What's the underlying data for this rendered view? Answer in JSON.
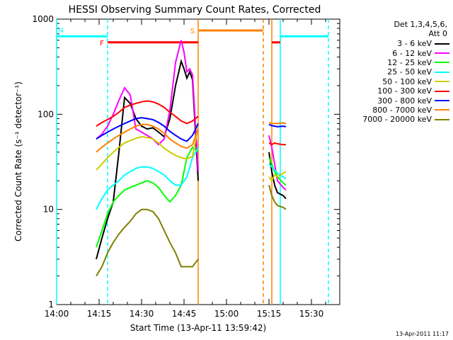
{
  "chart_data": {
    "type": "line",
    "title": "HESSI Observing Summary Count Rates, Corrected",
    "xlabel": "Start Time (13-Apr-11 13:59:42)",
    "ylabel": "Corrected Count Rate (s⁻¹ detector⁻¹)",
    "x_unit": "minutes after 14:00",
    "xlim": [
      0,
      100
    ],
    "ylim": [
      1,
      1000
    ],
    "y_scale": "log",
    "x_ticks": [
      "14:00",
      "14:15",
      "14:30",
      "14:45",
      "15:00",
      "15:15",
      "15:30"
    ],
    "x_tick_values": [
      0,
      15,
      30,
      45,
      60,
      75,
      90
    ],
    "y_ticks": [
      "1",
      "10",
      "100",
      "1000"
    ],
    "y_tick_values": [
      1,
      10,
      100,
      1000
    ],
    "legend_header": [
      "Det 1,3,4,5,6,",
      "Att 0"
    ],
    "legend_position": "right",
    "timestamp": "13-Apr-2011 11:17",
    "series": [
      {
        "name": "3 - 6 keV",
        "color": "#000000",
        "points": [
          [
            14,
            3
          ],
          [
            16,
            5
          ],
          [
            18,
            8
          ],
          [
            20,
            12
          ],
          [
            22,
            40
          ],
          [
            24,
            150
          ],
          [
            26,
            130
          ],
          [
            28,
            90
          ],
          [
            30,
            75
          ],
          [
            32,
            70
          ],
          [
            34,
            72
          ],
          [
            36,
            65
          ],
          [
            38,
            58
          ],
          [
            40,
            90
          ],
          [
            42,
            200
          ],
          [
            44,
            360
          ],
          [
            45,
            300
          ],
          [
            46,
            240
          ],
          [
            47,
            280
          ],
          [
            48,
            230
          ],
          [
            50,
            20
          ]
        ],
        "points2": [
          [
            75,
            40
          ],
          [
            76,
            25
          ],
          [
            77,
            18
          ],
          [
            78,
            15
          ],
          [
            80,
            14
          ],
          [
            81,
            13
          ]
        ]
      },
      {
        "name": "6 - 12 keV",
        "color": "#ff00ff",
        "points": [
          [
            14,
            55
          ],
          [
            16,
            62
          ],
          [
            18,
            75
          ],
          [
            20,
            100
          ],
          [
            22,
            140
          ],
          [
            24,
            190
          ],
          [
            26,
            160
          ],
          [
            28,
            70
          ],
          [
            30,
            65
          ],
          [
            32,
            60
          ],
          [
            34,
            55
          ],
          [
            36,
            48
          ],
          [
            38,
            55
          ],
          [
            40,
            110
          ],
          [
            42,
            350
          ],
          [
            44,
            600
          ],
          [
            45,
            450
          ],
          [
            46,
            280
          ],
          [
            47,
            300
          ],
          [
            48,
            260
          ],
          [
            50,
            25
          ]
        ],
        "points2": [
          [
            75,
            60
          ],
          [
            76,
            45
          ],
          [
            77,
            30
          ],
          [
            78,
            20
          ],
          [
            80,
            17
          ],
          [
            81,
            16
          ]
        ]
      },
      {
        "name": "12 - 25 keV",
        "color": "#00ff00",
        "points": [
          [
            14,
            4
          ],
          [
            16,
            6
          ],
          [
            18,
            9
          ],
          [
            20,
            12
          ],
          [
            22,
            14
          ],
          [
            24,
            16
          ],
          [
            26,
            17
          ],
          [
            28,
            18
          ],
          [
            30,
            19
          ],
          [
            32,
            20
          ],
          [
            34,
            19
          ],
          [
            36,
            17
          ],
          [
            38,
            14
          ],
          [
            40,
            12
          ],
          [
            42,
            14
          ],
          [
            44,
            18
          ],
          [
            46,
            35
          ],
          [
            48,
            45
          ],
          [
            50,
            40
          ]
        ],
        "points2": [
          [
            75,
            35
          ],
          [
            76,
            30
          ],
          [
            77,
            25
          ],
          [
            78,
            22
          ],
          [
            80,
            19
          ],
          [
            81,
            18
          ]
        ]
      },
      {
        "name": "25 - 50 keV",
        "color": "#00ffff",
        "points": [
          [
            14,
            10
          ],
          [
            16,
            13
          ],
          [
            18,
            16
          ],
          [
            20,
            18
          ],
          [
            22,
            20
          ],
          [
            24,
            23
          ],
          [
            26,
            25
          ],
          [
            28,
            27
          ],
          [
            30,
            28
          ],
          [
            32,
            28
          ],
          [
            34,
            27
          ],
          [
            36,
            25
          ],
          [
            38,
            23
          ],
          [
            40,
            20
          ],
          [
            42,
            18
          ],
          [
            44,
            18
          ],
          [
            46,
            22
          ],
          [
            48,
            35
          ],
          [
            50,
            45
          ]
        ],
        "points2": [
          [
            75,
            30
          ],
          [
            76,
            28
          ],
          [
            77,
            26
          ],
          [
            78,
            24
          ],
          [
            80,
            22
          ],
          [
            81,
            21
          ]
        ]
      },
      {
        "name": "50 - 100 keV",
        "color": "#cccc00",
        "points": [
          [
            14,
            26
          ],
          [
            16,
            30
          ],
          [
            18,
            35
          ],
          [
            20,
            40
          ],
          [
            22,
            45
          ],
          [
            24,
            50
          ],
          [
            26,
            53
          ],
          [
            28,
            56
          ],
          [
            30,
            58
          ],
          [
            32,
            57
          ],
          [
            34,
            55
          ],
          [
            36,
            50
          ],
          [
            38,
            44
          ],
          [
            40,
            40
          ],
          [
            42,
            37
          ],
          [
            44,
            35
          ],
          [
            46,
            34
          ],
          [
            48,
            36
          ],
          [
            50,
            75
          ]
        ],
        "points2": [
          [
            75,
            22
          ],
          [
            76,
            20
          ],
          [
            77,
            23
          ],
          [
            78,
            22
          ],
          [
            80,
            24
          ],
          [
            81,
            25
          ]
        ]
      },
      {
        "name": "100 - 300 keV",
        "color": "#ff0000",
        "points": [
          [
            14,
            75
          ],
          [
            16,
            82
          ],
          [
            18,
            88
          ],
          [
            20,
            95
          ],
          [
            22,
            105
          ],
          [
            24,
            118
          ],
          [
            26,
            125
          ],
          [
            28,
            130
          ],
          [
            30,
            135
          ],
          [
            32,
            138
          ],
          [
            34,
            135
          ],
          [
            36,
            128
          ],
          [
            38,
            118
          ],
          [
            40,
            105
          ],
          [
            42,
            95
          ],
          [
            44,
            85
          ],
          [
            46,
            80
          ],
          [
            48,
            85
          ],
          [
            50,
            95
          ]
        ],
        "points2": [
          [
            75,
            50
          ],
          [
            76,
            48
          ],
          [
            77,
            50
          ],
          [
            78,
            49
          ],
          [
            80,
            48
          ],
          [
            81,
            48
          ]
        ]
      },
      {
        "name": "300 - 800 keV",
        "color": "#0000ff",
        "points": [
          [
            14,
            55
          ],
          [
            16,
            60
          ],
          [
            18,
            65
          ],
          [
            20,
            70
          ],
          [
            22,
            75
          ],
          [
            24,
            80
          ],
          [
            26,
            85
          ],
          [
            28,
            90
          ],
          [
            30,
            92
          ],
          [
            32,
            90
          ],
          [
            34,
            88
          ],
          [
            36,
            82
          ],
          [
            38,
            75
          ],
          [
            40,
            66
          ],
          [
            42,
            60
          ],
          [
            44,
            55
          ],
          [
            46,
            52
          ],
          [
            48,
            60
          ],
          [
            50,
            80
          ]
        ],
        "points2": [
          [
            75,
            78
          ],
          [
            76,
            76
          ],
          [
            77,
            75
          ],
          [
            78,
            74
          ],
          [
            80,
            75
          ],
          [
            81,
            74
          ]
        ]
      },
      {
        "name": "800 - 7000 keV",
        "color": "#ff8000",
        "points": [
          [
            14,
            40
          ],
          [
            16,
            45
          ],
          [
            18,
            50
          ],
          [
            20,
            55
          ],
          [
            22,
            60
          ],
          [
            24,
            65
          ],
          [
            26,
            70
          ],
          [
            28,
            75
          ],
          [
            30,
            78
          ],
          [
            32,
            78
          ],
          [
            34,
            75
          ],
          [
            36,
            70
          ],
          [
            38,
            63
          ],
          [
            40,
            55
          ],
          [
            42,
            50
          ],
          [
            44,
            46
          ],
          [
            46,
            44
          ],
          [
            48,
            48
          ],
          [
            50,
            70
          ]
        ],
        "points2": [
          [
            75,
            82
          ],
          [
            76,
            80
          ],
          [
            77,
            80
          ],
          [
            78,
            80
          ],
          [
            80,
            81
          ],
          [
            81,
            80
          ]
        ]
      },
      {
        "name": "7000 - 20000 keV",
        "color": "#808000",
        "points": [
          [
            14,
            2
          ],
          [
            16,
            2.5
          ],
          [
            18,
            3.5
          ],
          [
            20,
            4.5
          ],
          [
            22,
            5.5
          ],
          [
            24,
            6.5
          ],
          [
            26,
            7.5
          ],
          [
            28,
            9
          ],
          [
            30,
            10
          ],
          [
            32,
            10
          ],
          [
            34,
            9.5
          ],
          [
            36,
            8
          ],
          [
            38,
            6
          ],
          [
            40,
            4.5
          ],
          [
            42,
            3.5
          ],
          [
            44,
            2.5
          ],
          [
            46,
            2.5
          ],
          [
            48,
            2.5
          ],
          [
            50,
            3
          ]
        ],
        "points2": [
          [
            75,
            18
          ],
          [
            76,
            14
          ],
          [
            77,
            12
          ],
          [
            78,
            11
          ],
          [
            80,
            10.5
          ],
          [
            81,
            10
          ]
        ]
      }
    ],
    "flag_bars": [
      {
        "label": "F",
        "color": "#ff0000",
        "start": 18,
        "end": 50,
        "level": 570
      },
      {
        "label": "S",
        "color": "#ff8000",
        "start": 50,
        "end": 73,
        "level": 760
      },
      {
        "label": "",
        "color": "#ff0000",
        "start": 76,
        "end": 79,
        "level": 570
      },
      {
        "label": "N",
        "color": "#00ffff",
        "start": 0,
        "end": 18,
        "level": 660
      },
      {
        "label": "",
        "color": "#00ffff",
        "start": 79,
        "end": 96,
        "level": 660
      }
    ],
    "markers": [
      {
        "color": "#00ffff",
        "at": 0,
        "style": "solid"
      },
      {
        "color": "#00ffff",
        "at": 18,
        "style": "dashed"
      },
      {
        "color": "#ff8000",
        "at": 50,
        "style": "solid"
      },
      {
        "color": "#ff8000",
        "at": 73,
        "style": "dashed"
      },
      {
        "color": "#ff8000",
        "at": 76,
        "style": "solid"
      },
      {
        "color": "#00ffff",
        "at": 79,
        "style": "solid"
      },
      {
        "color": "#00ffff",
        "at": 96,
        "style": "dashed"
      }
    ]
  }
}
